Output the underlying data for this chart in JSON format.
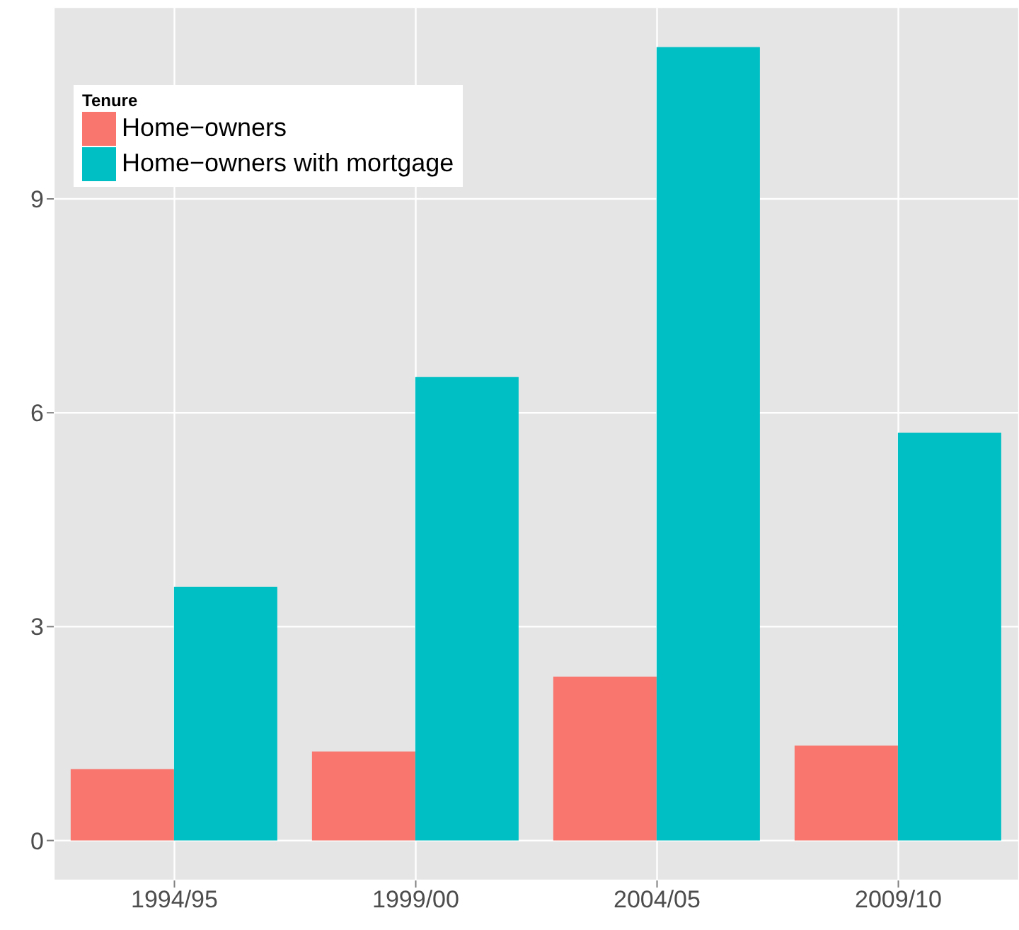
{
  "chart_data": {
    "type": "bar",
    "legend_title": "Tenure",
    "categories": [
      "1994/95",
      "1999/00",
      "2004/05",
      "2009/10"
    ],
    "series": [
      {
        "name": "Home−owners",
        "color": "#f8766d",
        "values": [
          1.0,
          1.25,
          2.3,
          1.33
        ]
      },
      {
        "name": "Home−owners with mortgage",
        "color": "#00bfc4",
        "values": [
          3.56,
          6.5,
          11.13,
          5.72
        ]
      }
    ],
    "ylim": [
      -0.56,
      11.69
    ],
    "yticks": [
      0,
      3,
      6,
      9
    ],
    "grid": true,
    "legend": "top left"
  }
}
